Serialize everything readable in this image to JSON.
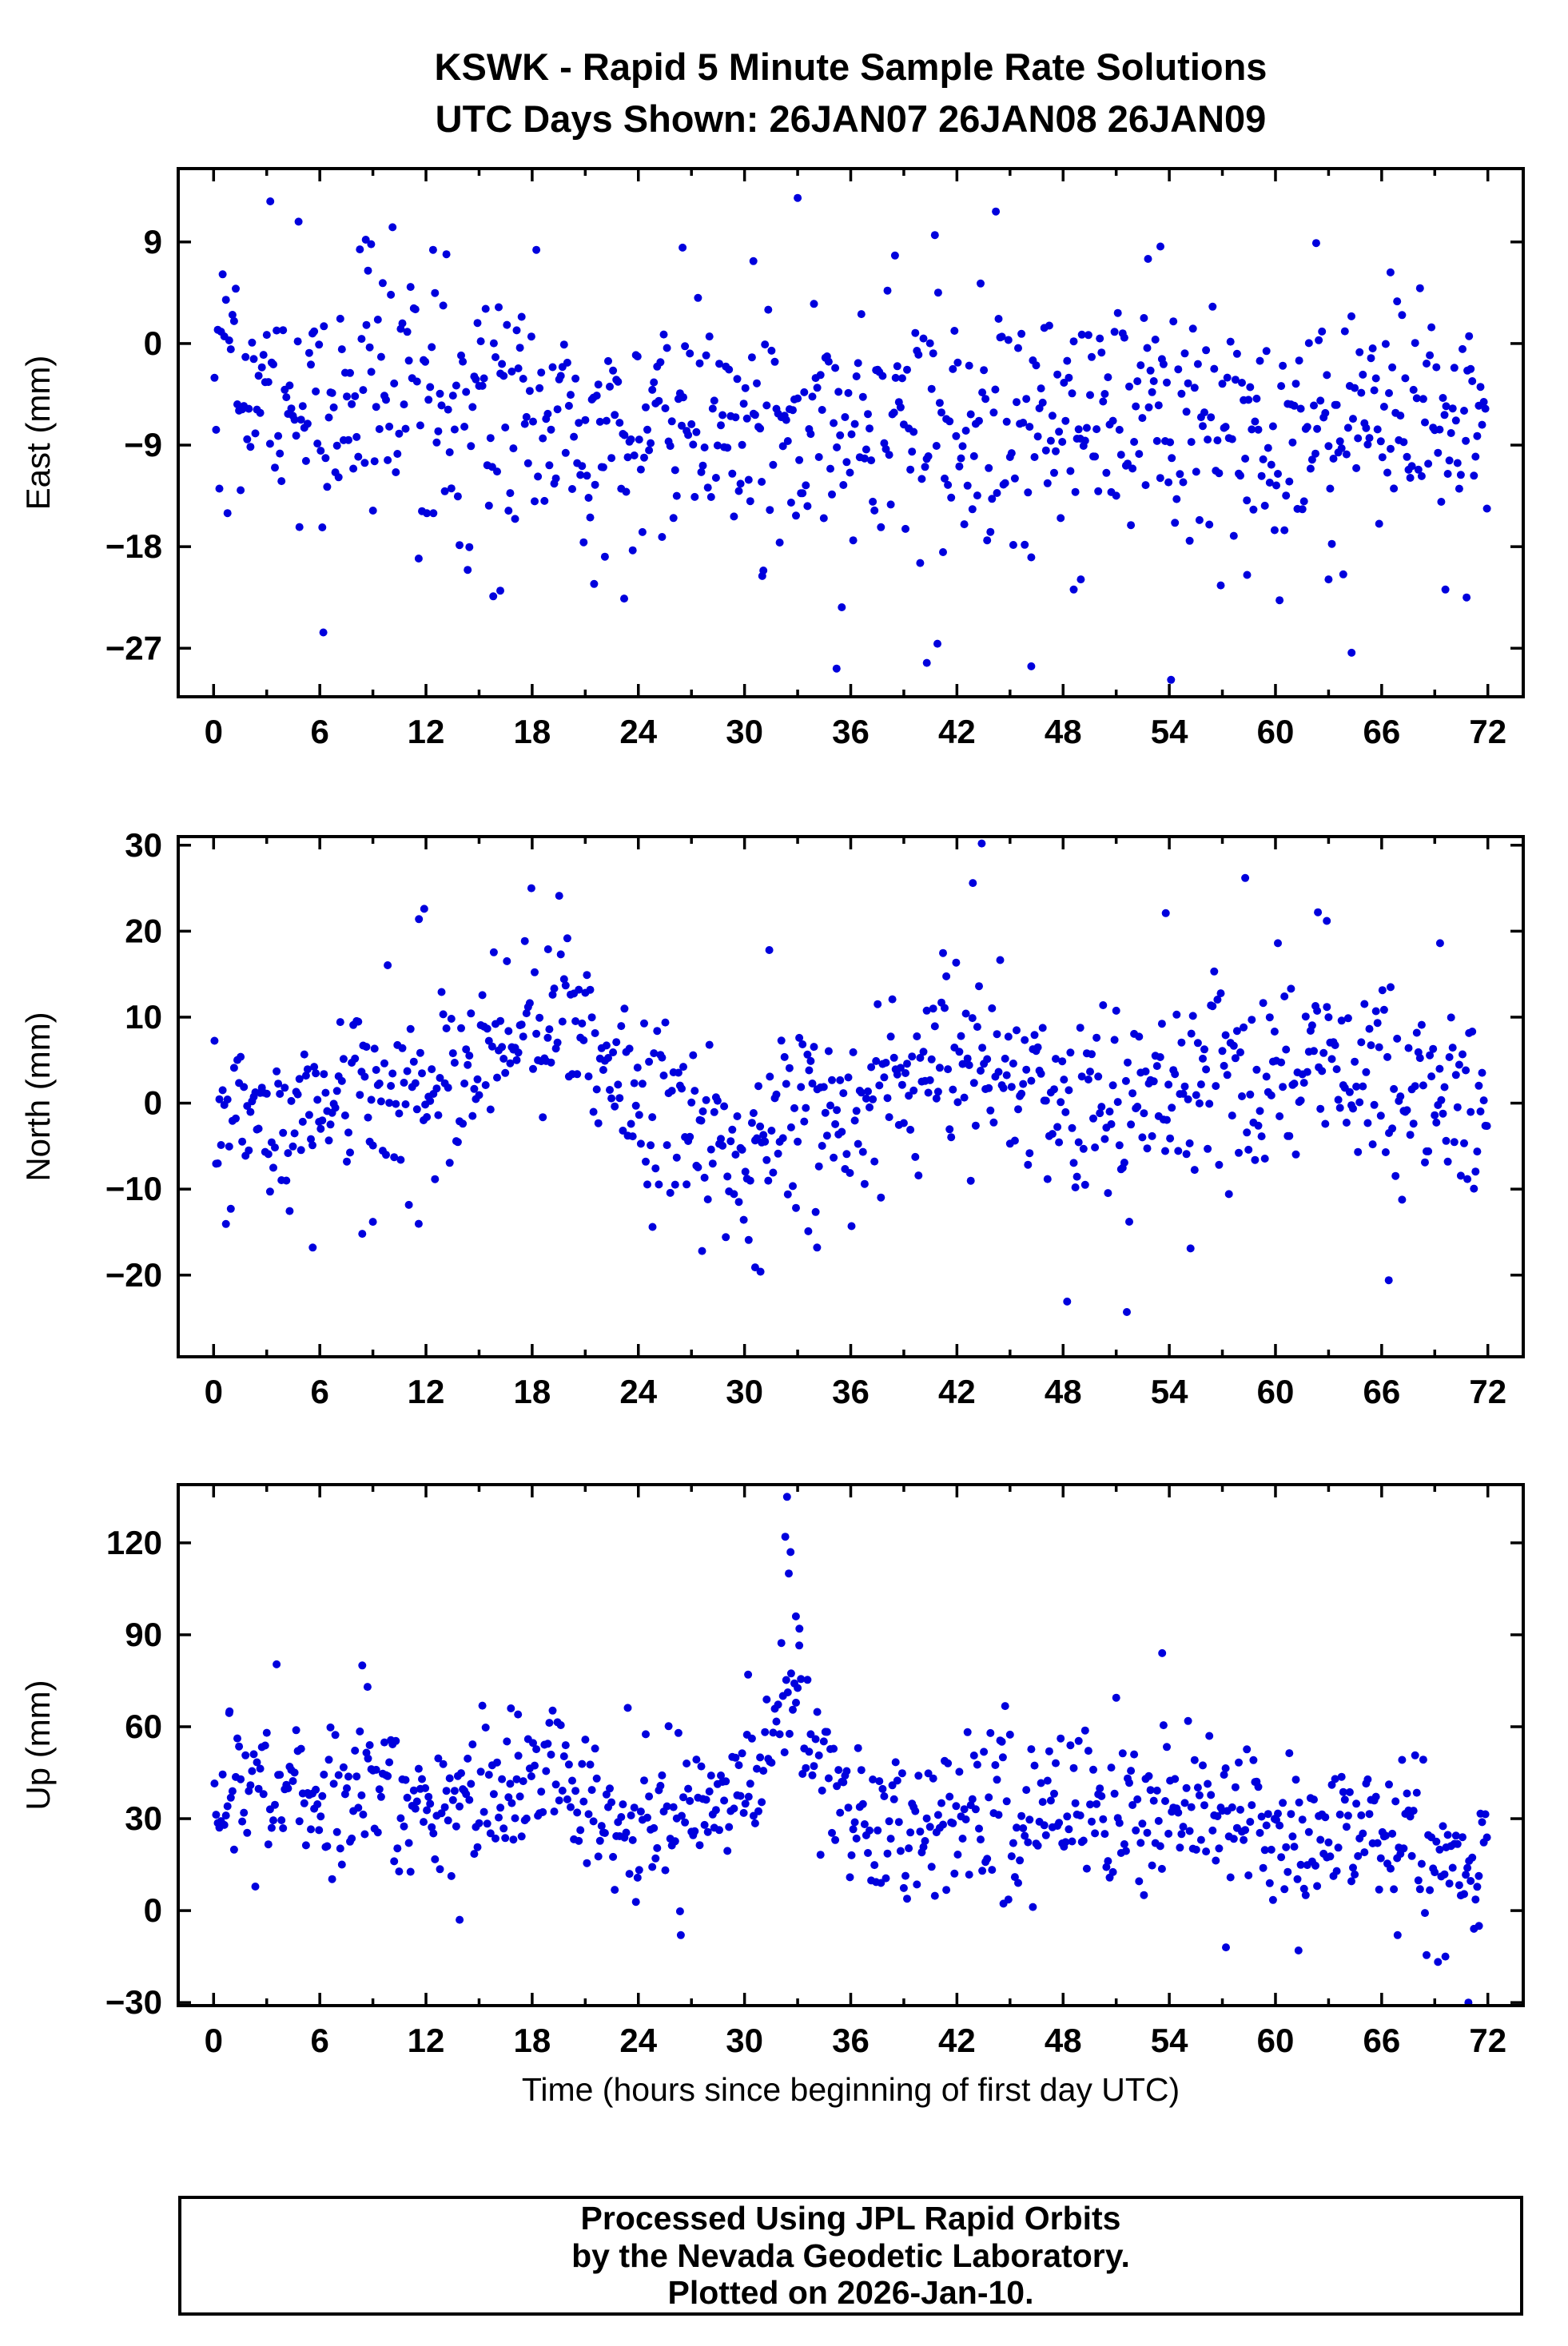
{
  "title": {
    "line1": "KSWK - Rapid 5 Minute Sample Rate Solutions",
    "line2": "UTC Days Shown:  26JAN07 26JAN08 26JAN09"
  },
  "xlabel": "Time (hours since beginning of first day UTC)",
  "footer": {
    "line1": "Processed Using JPL Rapid Orbits",
    "line2": "by the Nevada Geodetic Laboratory.",
    "line3": "Plotted on 2026-Jan-10."
  },
  "chart_data": [
    {
      "type": "scatter",
      "ylabel": "East (mm)",
      "xlim": [
        -2,
        74
      ],
      "ylim": [
        -31.3,
        15.5
      ],
      "xticks": [
        0,
        6,
        12,
        18,
        24,
        30,
        36,
        42,
        48,
        54,
        60,
        66,
        72
      ],
      "yticks": [
        9,
        0,
        -9,
        -18,
        -27
      ],
      "marker_color": "#0000dd",
      "marker_radius": 5,
      "points_spec": {
        "seed": 101,
        "n": 780,
        "x_start": 0.05,
        "x_step": 0.0923,
        "sigma": 5.2,
        "mean_knots": [
          [
            0,
            -4
          ],
          [
            6,
            -4
          ],
          [
            10,
            -3
          ],
          [
            14,
            -6
          ],
          [
            18,
            -6
          ],
          [
            22,
            -8
          ],
          [
            26,
            -7
          ],
          [
            30,
            -6
          ],
          [
            34,
            -7
          ],
          [
            38,
            -8
          ],
          [
            42,
            -6
          ],
          [
            46,
            -7
          ],
          [
            50,
            -6
          ],
          [
            54,
            -7
          ],
          [
            58,
            -8
          ],
          [
            62,
            -9
          ],
          [
            66,
            -7
          ],
          [
            70,
            -7
          ],
          [
            72,
            -7
          ]
        ],
        "outliers": [
          [
            3.2,
            12.6
          ],
          [
            4.8,
            10.8
          ],
          [
            8.6,
            9.2
          ],
          [
            8.9,
            8.8
          ],
          [
            12.4,
            8.3
          ],
          [
            33.0,
            12.9
          ],
          [
            26.5,
            8.5
          ],
          [
            30.5,
            7.3
          ],
          [
            44.2,
            11.7
          ],
          [
            38.5,
            7.8
          ],
          [
            53.5,
            8.6
          ],
          [
            52.8,
            7.5
          ],
          [
            62.3,
            8.9
          ],
          [
            66.5,
            6.3
          ],
          [
            6.2,
            -25.6
          ],
          [
            35.2,
            -28.8
          ],
          [
            40.3,
            -28.3
          ],
          [
            40.9,
            -26.6
          ],
          [
            46.2,
            -28.6
          ],
          [
            54.1,
            -29.8
          ],
          [
            64.3,
            -27.4
          ],
          [
            15.8,
            -22.4
          ],
          [
            16.2,
            -21.9
          ],
          [
            21.5,
            -21.3
          ],
          [
            23.2,
            -22.6
          ],
          [
            31.0,
            -20.6
          ],
          [
            48.6,
            -21.8
          ],
          [
            49.0,
            -20.9
          ],
          [
            58.4,
            -20.5
          ],
          [
            63.0,
            -20.9
          ],
          [
            69.6,
            -21.8
          ],
          [
            70.8,
            -22.5
          ]
        ]
      }
    },
    {
      "type": "scatter",
      "ylabel": "North (mm)",
      "xlim": [
        -2,
        74
      ],
      "ylim": [
        -29.5,
        31.0
      ],
      "xticks": [
        0,
        6,
        12,
        18,
        24,
        30,
        36,
        42,
        48,
        54,
        60,
        66,
        72
      ],
      "yticks": [
        30,
        20,
        10,
        0,
        -10,
        -20
      ],
      "marker_color": "#0000dd",
      "marker_radius": 5,
      "points_spec": {
        "seed": 202,
        "n": 780,
        "x_start": 0.05,
        "x_step": 0.0923,
        "sigma": 5.2,
        "mean_knots": [
          [
            0,
            -3
          ],
          [
            3,
            -3
          ],
          [
            6,
            0
          ],
          [
            9,
            1
          ],
          [
            12,
            0
          ],
          [
            15,
            4
          ],
          [
            18,
            9
          ],
          [
            20,
            10
          ],
          [
            22,
            5
          ],
          [
            24,
            0
          ],
          [
            26,
            -3
          ],
          [
            28,
            -4
          ],
          [
            30,
            -4
          ],
          [
            32,
            -2
          ],
          [
            34,
            -1
          ],
          [
            36,
            0
          ],
          [
            38,
            1
          ],
          [
            40,
            2
          ],
          [
            42,
            4
          ],
          [
            44,
            4
          ],
          [
            46,
            2
          ],
          [
            48,
            1
          ],
          [
            50,
            -1
          ],
          [
            52,
            0
          ],
          [
            54,
            1
          ],
          [
            56,
            2
          ],
          [
            58,
            3
          ],
          [
            60,
            4
          ],
          [
            62,
            6
          ],
          [
            64,
            5
          ],
          [
            66,
            2
          ],
          [
            68,
            2
          ],
          [
            70,
            2
          ],
          [
            72,
            2
          ]
        ],
        "outliers": [
          [
            43.4,
            30.2
          ],
          [
            42.9,
            25.6
          ],
          [
            11.9,
            22.6
          ],
          [
            11.6,
            21.4
          ],
          [
            53.8,
            22.1
          ],
          [
            62.4,
            22.2
          ],
          [
            62.9,
            21.2
          ],
          [
            69.3,
            18.6
          ],
          [
            31.4,
            17.8
          ],
          [
            18.9,
            17.9
          ],
          [
            51.6,
            -24.3
          ],
          [
            30.6,
            -19.1
          ],
          [
            30.9,
            -19.6
          ],
          [
            27.6,
            -17.2
          ],
          [
            34.1,
            -16.8
          ],
          [
            8.4,
            -15.2
          ],
          [
            66.4,
            -20.6
          ],
          [
            55.2,
            -16.9
          ],
          [
            33.6,
            -14.9
          ],
          [
            24.8,
            -14.4
          ],
          [
            5.6,
            -16.8
          ],
          [
            9.0,
            -13.8
          ]
        ]
      }
    },
    {
      "type": "scatter",
      "ylabel": "Up (mm)",
      "xlim": [
        -2,
        74
      ],
      "ylim": [
        -31,
        139
      ],
      "xticks": [
        0,
        6,
        12,
        18,
        24,
        30,
        36,
        42,
        48,
        54,
        60,
        66,
        72
      ],
      "yticks": [
        120,
        90,
        60,
        30,
        0,
        -30
      ],
      "marker_color": "#0000dd",
      "marker_radius": 5,
      "points_spec": {
        "seed": 303,
        "n": 780,
        "x_start": 0.05,
        "x_step": 0.0923,
        "sigma": 12,
        "mean_knots": [
          [
            0,
            40
          ],
          [
            3,
            40
          ],
          [
            6,
            36
          ],
          [
            9,
            42
          ],
          [
            12,
            34
          ],
          [
            15,
            38
          ],
          [
            18,
            44
          ],
          [
            21,
            33
          ],
          [
            24,
            30
          ],
          [
            26,
            32
          ],
          [
            28,
            34
          ],
          [
            30,
            36
          ],
          [
            31,
            40
          ],
          [
            32,
            58
          ],
          [
            32.7,
            72
          ],
          [
            33.5,
            58
          ],
          [
            34.5,
            48
          ],
          [
            36,
            34
          ],
          [
            38,
            26
          ],
          [
            40,
            28
          ],
          [
            42,
            32
          ],
          [
            44,
            36
          ],
          [
            46,
            30
          ],
          [
            48,
            27
          ],
          [
            50,
            31
          ],
          [
            52,
            34
          ],
          [
            54,
            36
          ],
          [
            56,
            34
          ],
          [
            58,
            30
          ],
          [
            60,
            24
          ],
          [
            62,
            26
          ],
          [
            64,
            28
          ],
          [
            66,
            26
          ],
          [
            68,
            20
          ],
          [
            70,
            14
          ],
          [
            72,
            12
          ]
        ],
        "outliers": [
          [
            32.4,
            135
          ],
          [
            32.3,
            122
          ],
          [
            32.6,
            117
          ],
          [
            32.5,
            110
          ],
          [
            32.9,
            96
          ],
          [
            33.1,
            92
          ],
          [
            8.4,
            80
          ],
          [
            8.7,
            73
          ],
          [
            53.6,
            84
          ],
          [
            30.2,
            77
          ],
          [
            16.8,
            66
          ],
          [
            17.2,
            64
          ],
          [
            44.6,
            50
          ],
          [
            0.9,
            65
          ],
          [
            70.9,
            -30
          ],
          [
            69.6,
            -15
          ],
          [
            57.2,
            -12
          ],
          [
            61.3,
            -13
          ],
          [
            66.9,
            -8
          ],
          [
            71.5,
            -5
          ],
          [
            26.4,
            -8
          ],
          [
            13.9,
            -3
          ]
        ]
      }
    }
  ]
}
